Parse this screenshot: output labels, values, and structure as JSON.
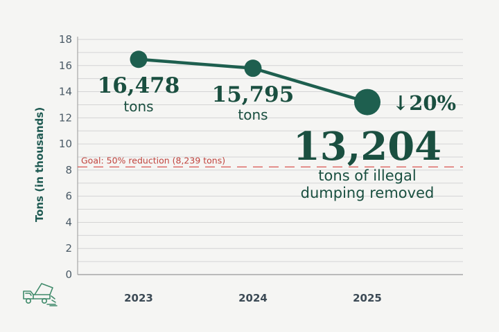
{
  "chart_data": {
    "type": "line",
    "title": "",
    "xlabel": "",
    "ylabel": "Tons  (in thousands)",
    "ylim": [
      0,
      18
    ],
    "yticks": [
      0,
      2,
      4,
      6,
      8,
      10,
      12,
      14,
      16,
      18
    ],
    "categories": [
      "2023",
      "2024",
      "2025"
    ],
    "series": [
      {
        "name": "Tons of illegal dumping removed",
        "values": [
          16.478,
          15.795,
          13.204
        ]
      }
    ],
    "data_labels": [
      {
        "value": "16,478",
        "unit": "tons"
      },
      {
        "value": "15,795",
        "unit": "tons"
      },
      {
        "value": "13,204",
        "unit": "tons of illegal dumping removed"
      }
    ],
    "change_label": "↓20%",
    "goal": {
      "value": 8.239,
      "label": "Goal: 50% reduction (8,239 tons)"
    },
    "colors": {
      "line": "#1e5f4f",
      "goal": "#d9534f",
      "grid": "#d4d4d4",
      "background": "#f5f5f3"
    },
    "icon": "dump-truck-icon"
  }
}
